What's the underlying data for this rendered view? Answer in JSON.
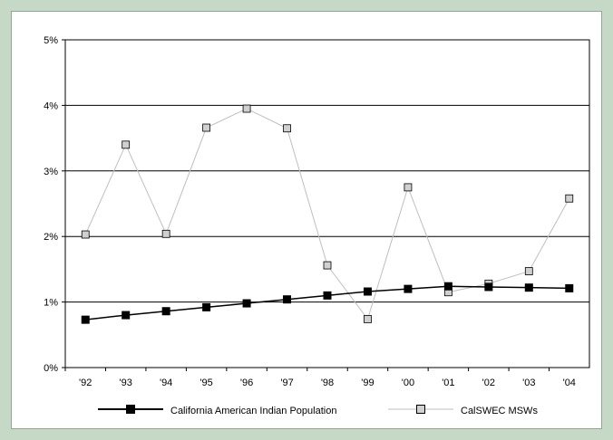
{
  "chart_data": {
    "type": "line",
    "categories": [
      "'92",
      "'93",
      "'94",
      "'95",
      "'96",
      "'97",
      "'98",
      "'99",
      "'00",
      "'01",
      "'02",
      "'03",
      "'04"
    ],
    "series": [
      {
        "name": "California American Indian Population",
        "color": "#000000",
        "marker": "filled-square",
        "values": [
          0.73,
          0.8,
          0.86,
          0.92,
          0.98,
          1.04,
          1.1,
          1.16,
          1.2,
          1.24,
          1.23,
          1.22,
          1.21
        ]
      },
      {
        "name": "CalSWEC MSWs",
        "color": "#bfbfbf",
        "marker": "open-square",
        "values": [
          2.03,
          3.4,
          2.04,
          3.66,
          3.95,
          3.65,
          1.56,
          0.74,
          2.75,
          1.15,
          1.28,
          1.47,
          2.58
        ]
      }
    ],
    "yticks": [
      "0%",
      "1%",
      "2%",
      "3%",
      "4%",
      "5%"
    ],
    "ylim": [
      0,
      5
    ],
    "grid": "horizontal",
    "legend_position": "bottom"
  }
}
